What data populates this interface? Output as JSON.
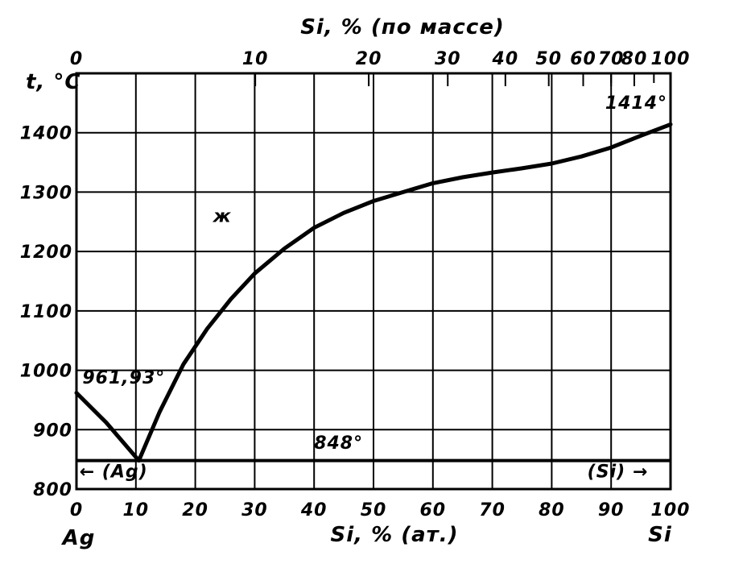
{
  "chart_data": {
    "type": "line",
    "title_top": "Si, % (по массе)",
    "xlabel": "Si, % (ат.)",
    "ylabel": "t, °C",
    "x_left_label": "Ag",
    "x_right_label": "Si",
    "xlim": [
      0,
      100
    ],
    "ylim": [
      800,
      1500
    ],
    "grid": true,
    "x_ticks": [
      0,
      10,
      20,
      30,
      40,
      50,
      60,
      70,
      80,
      90,
      100
    ],
    "x_tick_labels": [
      "0",
      "10",
      "20",
      "30",
      "40",
      "50",
      "60",
      "70",
      "80",
      "90",
      "100"
    ],
    "y_ticks": [
      800,
      900,
      1000,
      1100,
      1200,
      1300,
      1400
    ],
    "y_tick_labels": [
      "800",
      "900",
      "1000",
      "1100",
      "1200",
      "1300",
      "1400"
    ],
    "top_ticks": [
      {
        "label": "0",
        "at": 0
      },
      {
        "label": "10",
        "at": 30.1
      },
      {
        "label": "20",
        "at": 49.2
      },
      {
        "label": "30",
        "at": 62.5
      },
      {
        "label": "40",
        "at": 72.2
      },
      {
        "label": "50",
        "at": 79.5
      },
      {
        "label": "60",
        "at": 85.3
      },
      {
        "label": "70",
        "at": 90.0
      },
      {
        "label": "80",
        "at": 93.9
      },
      {
        "label": "100",
        "at": 100
      }
    ],
    "top_minor_ticks": [
      85.3,
      90.0,
      93.9,
      97.2
    ],
    "series": [
      {
        "values": [
          {
            "x": 0,
            "y": 961.93
          },
          {
            "x": 5,
            "y": 912
          },
          {
            "x": 10.5,
            "y": 848
          },
          {
            "x": 14,
            "y": 930
          },
          {
            "x": 18,
            "y": 1010
          },
          {
            "x": 22,
            "y": 1070
          },
          {
            "x": 26,
            "y": 1120
          },
          {
            "x": 30,
            "y": 1163
          },
          {
            "x": 35,
            "y": 1205
          },
          {
            "x": 40,
            "y": 1240
          },
          {
            "x": 45,
            "y": 1265
          },
          {
            "x": 50,
            "y": 1285
          },
          {
            "x": 55,
            "y": 1300
          },
          {
            "x": 60,
            "y": 1315
          },
          {
            "x": 65,
            "y": 1325
          },
          {
            "x": 70,
            "y": 1333
          },
          {
            "x": 75,
            "y": 1340
          },
          {
            "x": 80,
            "y": 1348
          },
          {
            "x": 85,
            "y": 1360
          },
          {
            "x": 90,
            "y": 1375
          },
          {
            "x": 95,
            "y": 1395
          },
          {
            "x": 100,
            "y": 1414
          }
        ]
      }
    ],
    "eutectic_line": {
      "y": 848,
      "x_from": 0,
      "x_to": 100
    },
    "annotations": [
      {
        "text": "961,93°",
        "x": 1,
        "y": 978
      },
      {
        "text": "1414°",
        "x": 89,
        "y": 1440
      },
      {
        "text": "848°",
        "x": 40,
        "y": 868
      },
      {
        "text": "ж",
        "x": 23,
        "y": 1250
      },
      {
        "text": "← (Ag)",
        "x": 0.5,
        "y": 820
      },
      {
        "text": "(Si) →",
        "x": 86,
        "y": 820
      }
    ]
  }
}
